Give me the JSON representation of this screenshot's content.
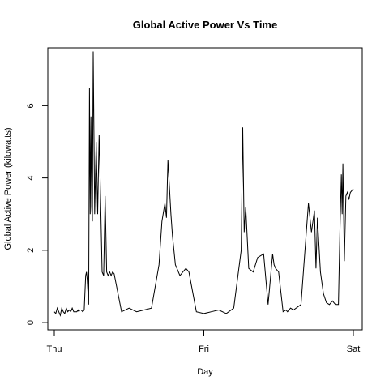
{
  "chart_data": {
    "type": "line",
    "title": "Global Active Power Vs Time",
    "xlabel": "Day",
    "ylabel": "Global Active Power (kilowatts)",
    "xlim": [
      0,
      2
    ],
    "ylim": [
      -0.2,
      7.6
    ],
    "x_ticks": [
      {
        "value": 0,
        "label": "Thu"
      },
      {
        "value": 1,
        "label": "Fri"
      },
      {
        "value": 2,
        "label": "Sat"
      }
    ],
    "y_ticks": [
      {
        "value": 0,
        "label": "0"
      },
      {
        "value": 2,
        "label": "2"
      },
      {
        "value": 4,
        "label": "4"
      },
      {
        "value": 6,
        "label": "6"
      }
    ],
    "grid": false,
    "legend": "none",
    "line_color": "#000000",
    "series": [
      {
        "x": [
          0.0,
          0.01,
          0.02,
          0.03,
          0.04,
          0.05,
          0.06,
          0.07,
          0.08,
          0.09,
          0.1,
          0.11,
          0.12,
          0.13,
          0.15,
          0.16,
          0.165,
          0.17,
          0.18,
          0.19,
          0.2,
          0.21,
          0.215,
          0.22,
          0.23,
          0.235,
          0.24,
          0.245,
          0.25,
          0.255,
          0.26,
          0.27,
          0.28,
          0.29,
          0.3,
          0.31,
          0.32,
          0.33,
          0.34,
          0.35,
          0.36,
          0.37,
          0.38,
          0.39,
          0.4,
          0.45,
          0.5,
          0.55,
          0.6,
          0.65,
          0.7,
          0.72,
          0.74,
          0.75,
          0.76,
          0.78,
          0.79,
          0.8,
          0.81,
          0.82,
          0.84,
          0.86,
          0.88,
          0.9,
          0.95,
          1.0,
          1.05,
          1.1,
          1.15,
          1.2,
          1.25,
          1.26,
          1.27,
          1.28,
          1.3,
          1.33,
          1.36,
          1.4,
          1.43,
          1.46,
          1.47,
          1.48,
          1.5,
          1.53,
          1.55,
          1.56,
          1.58,
          1.6,
          1.65,
          1.7,
          1.72,
          1.74,
          1.75,
          1.76,
          1.78,
          1.8,
          1.82,
          1.84,
          1.86,
          1.88,
          1.9,
          1.91,
          1.92,
          1.925,
          1.93,
          1.94,
          1.95,
          1.96,
          1.97,
          1.98,
          1.99,
          2.0
        ],
        "values": [
          0.3,
          0.25,
          0.4,
          0.3,
          0.2,
          0.4,
          0.3,
          0.25,
          0.4,
          0.3,
          0.35,
          0.3,
          0.4,
          0.3,
          0.3,
          0.35,
          0.3,
          0.35,
          0.35,
          0.3,
          0.35,
          1.3,
          1.4,
          1.2,
          0.5,
          6.5,
          3.0,
          5.7,
          3.2,
          2.8,
          7.5,
          3.0,
          5.0,
          3.0,
          5.2,
          3.3,
          1.4,
          1.3,
          3.5,
          1.4,
          1.3,
          1.4,
          1.3,
          1.4,
          1.35,
          0.3,
          0.4,
          0.3,
          0.35,
          0.4,
          1.6,
          2.8,
          3.3,
          2.9,
          4.5,
          3.0,
          2.4,
          2.0,
          1.6,
          1.5,
          1.3,
          1.4,
          1.5,
          1.4,
          0.3,
          0.25,
          0.3,
          0.35,
          0.25,
          0.4,
          2.0,
          5.4,
          2.5,
          3.2,
          1.5,
          1.4,
          1.8,
          1.9,
          0.5,
          1.9,
          1.6,
          1.5,
          1.4,
          0.3,
          0.35,
          0.3,
          0.4,
          0.35,
          0.5,
          3.3,
          2.5,
          3.1,
          1.5,
          2.9,
          1.4,
          0.8,
          0.55,
          0.5,
          0.6,
          0.5,
          0.5,
          2.5,
          4.1,
          3.0,
          4.4,
          1.7,
          3.5,
          3.6,
          3.4,
          3.6,
          3.65,
          3.7
        ]
      }
    ]
  }
}
